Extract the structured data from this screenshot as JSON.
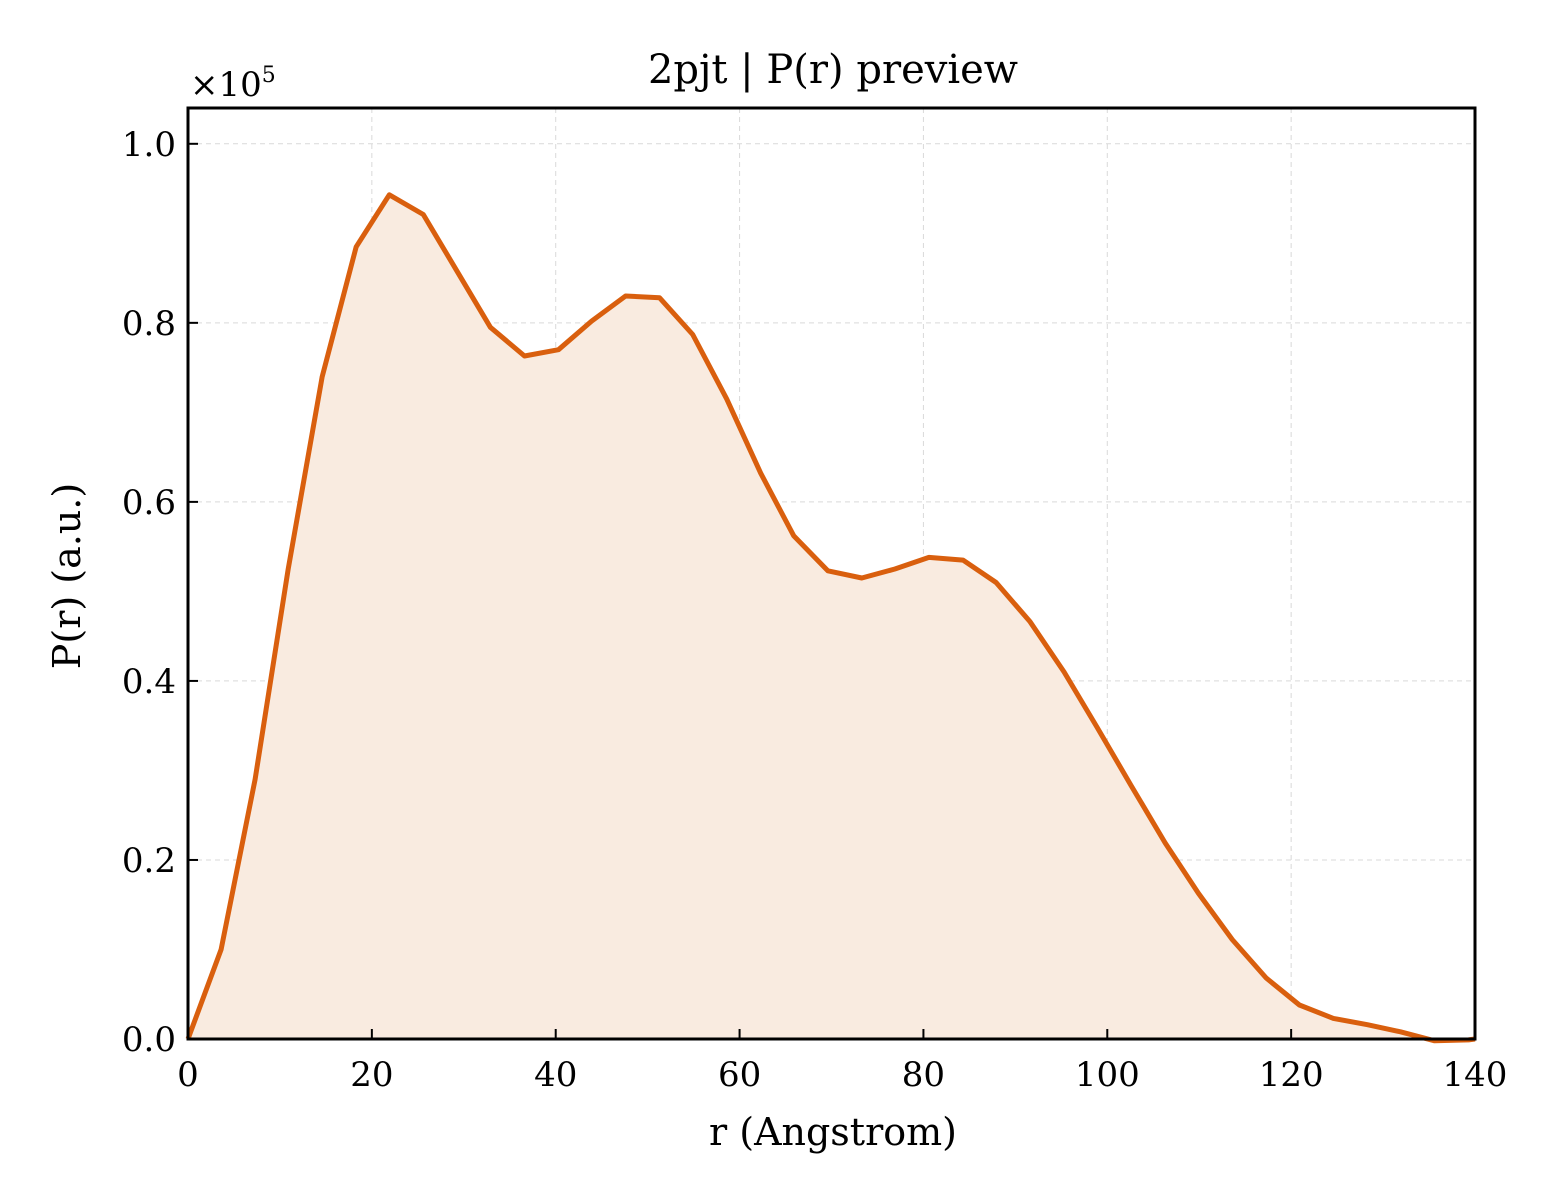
{
  "chart_data": {
    "type": "area",
    "title": "2pjt | P(r) preview",
    "xlabel": "r (Angstrom)",
    "ylabel": "P(r) (a.u.)",
    "y_multiplier": "×10",
    "y_multiplier_exponent": "5",
    "xlim": [
      0,
      140
    ],
    "ylim": [
      0,
      1.04
    ],
    "xticks": [
      0,
      20,
      40,
      60,
      80,
      100,
      120,
      140
    ],
    "xtick_labels": [
      "0",
      "20",
      "40",
      "60",
      "80",
      "100",
      "120",
      "140"
    ],
    "yticks": [
      0.0,
      0.2,
      0.4,
      0.6,
      0.8,
      1.0
    ],
    "ytick_labels": [
      "0.0",
      "0.2",
      "0.4",
      "0.6",
      "0.8",
      "1.0"
    ],
    "grid": true,
    "line_color": "#d95f0e",
    "fill_color": "#f9ebe0",
    "series": [
      {
        "x": [
          0,
          3.6,
          7.3,
          10.9,
          14.6,
          18.3,
          21.9,
          25.6,
          29.3,
          32.9,
          36.6,
          40.3,
          43.9,
          47.6,
          51.3,
          54.9,
          58.6,
          62.3,
          65.9,
          69.6,
          73.3,
          76.9,
          80.6,
          84.3,
          87.9,
          91.6,
          95.3,
          98.9,
          102.6,
          106.3,
          109.9,
          113.6,
          117.3,
          120.9,
          124.6,
          128.3,
          131.9,
          135.6,
          139.3,
          140
        ],
        "y": [
          0.0,
          0.1,
          0.29,
          0.525,
          0.74,
          0.885,
          0.943,
          0.921,
          0.857,
          0.795,
          0.763,
          0.77,
          0.802,
          0.83,
          0.828,
          0.787,
          0.715,
          0.632,
          0.562,
          0.523,
          0.515,
          0.525,
          0.538,
          0.535,
          0.51,
          0.466,
          0.41,
          0.348,
          0.283,
          0.219,
          0.163,
          0.111,
          0.068,
          0.038,
          0.023,
          0.016,
          0.008,
          -0.002,
          -0.001,
          0.0
        ]
      }
    ]
  }
}
